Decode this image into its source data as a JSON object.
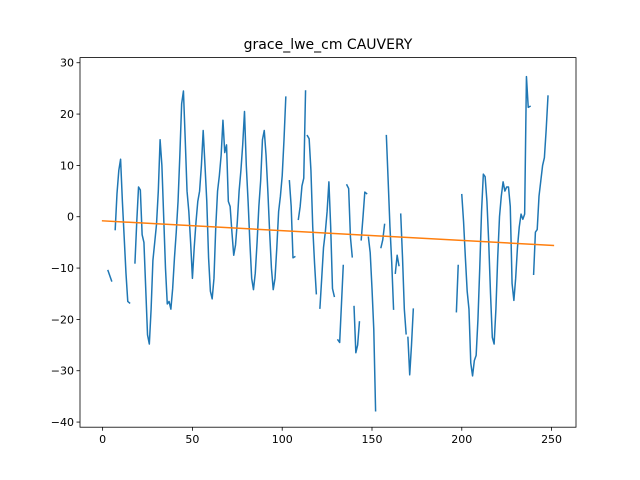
{
  "chart_data": {
    "type": "line",
    "title": "grace_lwe_cm CAUVERY",
    "xlabel": "",
    "ylabel": "",
    "xlim": [
      -12.6,
      263.6
    ],
    "ylim": [
      -41,
      31
    ],
    "x_ticks": [
      0,
      50,
      100,
      150,
      200,
      250
    ],
    "y_ticks": [
      -40,
      -30,
      -20,
      -10,
      0,
      10,
      20,
      30
    ],
    "grid": false,
    "legend": "none",
    "series": [
      {
        "color": "#1f77b4",
        "segments": [
          [
            [
              3,
              -10.5
            ],
            [
              5,
              -12.5
            ]
          ],
          [
            [
              7,
              -2.5
            ],
            [
              8,
              4.5
            ],
            [
              9,
              9
            ],
            [
              10,
              11.2
            ],
            [
              11,
              3
            ],
            [
              12,
              -4
            ],
            [
              13,
              -11
            ],
            [
              14,
              -16.5
            ],
            [
              15,
              -16.8
            ]
          ],
          [
            [
              18,
              -9
            ],
            [
              19,
              -1
            ],
            [
              20,
              5.8
            ],
            [
              21,
              5.2
            ],
            [
              22,
              -3.5
            ],
            [
              23,
              -5
            ],
            [
              24,
              -14
            ],
            [
              25,
              -23
            ],
            [
              26,
              -24.8
            ],
            [
              27,
              -18
            ],
            [
              28,
              -8.5
            ],
            [
              29,
              -5
            ],
            [
              30,
              -1.5
            ],
            [
              31,
              5
            ],
            [
              32,
              15
            ],
            [
              33,
              10
            ],
            [
              34,
              0
            ],
            [
              35,
              -10
            ],
            [
              36,
              -17
            ],
            [
              37,
              -16.5
            ],
            [
              38,
              -18
            ],
            [
              39,
              -14
            ],
            [
              40,
              -8
            ],
            [
              41,
              -3
            ],
            [
              42,
              3
            ],
            [
              43,
              12
            ],
            [
              44,
              22
            ],
            [
              45,
              24.5
            ],
            [
              46,
              15
            ],
            [
              47,
              5
            ],
            [
              48,
              1
            ],
            [
              49,
              -5
            ],
            [
              50,
              -12
            ],
            [
              51,
              -6
            ],
            [
              52,
              -1
            ],
            [
              53,
              3
            ],
            [
              54,
              5
            ],
            [
              55,
              10
            ],
            [
              56,
              16.8
            ],
            [
              57,
              10
            ],
            [
              58,
              3
            ],
            [
              59,
              -8
            ],
            [
              60,
              -14.5
            ],
            [
              61,
              -16
            ],
            [
              62,
              -12
            ],
            [
              63,
              -2
            ],
            [
              64,
              5
            ],
            [
              65,
              8
            ],
            [
              66,
              12
            ],
            [
              67,
              18.8
            ],
            [
              68,
              12.5
            ],
            [
              69,
              14
            ],
            [
              70,
              3
            ],
            [
              71,
              2
            ],
            [
              72,
              -3
            ],
            [
              73,
              -7.5
            ],
            [
              74,
              -5.5
            ],
            [
              75,
              -1
            ],
            [
              76,
              5
            ],
            [
              77,
              9
            ],
            [
              78,
              14
            ],
            [
              79,
              20.5
            ],
            [
              80,
              10
            ],
            [
              81,
              3
            ],
            [
              82,
              -5
            ],
            [
              83,
              -12
            ],
            [
              84,
              -14.2
            ],
            [
              85,
              -11
            ],
            [
              86,
              -5
            ],
            [
              87,
              2
            ],
            [
              88,
              7
            ],
            [
              89,
              15
            ],
            [
              90,
              16.8
            ],
            [
              91,
              12
            ],
            [
              92,
              5
            ],
            [
              93,
              -3
            ],
            [
              94,
              -10
            ],
            [
              95,
              -14.2
            ],
            [
              96,
              -12
            ],
            [
              97,
              -6
            ],
            [
              98,
              1
            ],
            [
              99,
              4
            ],
            [
              100,
              8
            ],
            [
              101,
              15
            ],
            [
              102,
              23.3
            ]
          ],
          [
            [
              104,
              7
            ],
            [
              105,
              2
            ],
            [
              106,
              -8
            ],
            [
              107,
              -7.8
            ]
          ],
          [
            [
              109,
              -0.5
            ],
            [
              110,
              2
            ],
            [
              111,
              6
            ],
            [
              112,
              7.5
            ],
            [
              113,
              24.5
            ]
          ],
          [
            [
              114,
              15.8
            ],
            [
              115,
              15.2
            ],
            [
              116,
              9
            ],
            [
              117,
              -2
            ],
            [
              118,
              -9
            ],
            [
              119,
              -15
            ]
          ],
          [
            [
              121,
              -17.8
            ],
            [
              122,
              -12
            ],
            [
              123,
              -6
            ],
            [
              124,
              -3
            ],
            [
              125,
              1
            ],
            [
              126,
              6.8
            ],
            [
              127,
              -2
            ],
            [
              128,
              -14
            ],
            [
              129,
              -15.5
            ]
          ],
          [
            [
              131,
              -24
            ],
            [
              132,
              -24.5
            ],
            [
              133,
              -17
            ],
            [
              134,
              -9.5
            ]
          ],
          [
            [
              136,
              6.2
            ],
            [
              137,
              5.5
            ],
            [
              138,
              -4
            ],
            [
              139,
              -7.8
            ]
          ],
          [
            [
              140,
              -17.5
            ],
            [
              141,
              -26.5
            ],
            [
              142,
              -25
            ],
            [
              143,
              -20.5
            ]
          ],
          [
            [
              144,
              -4.5
            ],
            [
              145,
              0
            ],
            [
              146,
              4.8
            ],
            [
              147,
              4.5
            ]
          ],
          [
            [
              148,
              -4
            ],
            [
              149,
              -7
            ],
            [
              150,
              -14
            ],
            [
              151,
              -22
            ],
            [
              152,
              -37.8
            ]
          ],
          [
            [
              155,
              -6
            ],
            [
              156,
              -4.5
            ],
            [
              157,
              -1.5
            ]
          ],
          [
            [
              158,
              15.8
            ],
            [
              159,
              7
            ],
            [
              160,
              -2
            ],
            [
              161,
              -9
            ],
            [
              162,
              -18
            ]
          ],
          [
            [
              163,
              -11
            ],
            [
              164,
              -7.5
            ],
            [
              165,
              -9.5
            ]
          ],
          [
            [
              166,
              0.5
            ],
            [
              167,
              -8
            ],
            [
              168,
              -18
            ],
            [
              169,
              -22.8
            ]
          ],
          [
            [
              170,
              -23.5
            ],
            [
              171,
              -30.8
            ],
            [
              172,
              -25
            ],
            [
              173,
              -18
            ]
          ],
          [
            [
              197,
              -18.5
            ],
            [
              198,
              -9.5
            ]
          ],
          [
            [
              200,
              4.3
            ],
            [
              201,
              -1
            ],
            [
              202,
              -8
            ],
            [
              203,
              -14.5
            ],
            [
              204,
              -18
            ],
            [
              205,
              -28.5
            ],
            [
              206,
              -31
            ],
            [
              207,
              -28
            ],
            [
              208,
              -27
            ],
            [
              209,
              -20
            ],
            [
              210,
              -10
            ],
            [
              211,
              1
            ],
            [
              212,
              8.3
            ],
            [
              213,
              7.8
            ],
            [
              214,
              3
            ],
            [
              215,
              -5
            ],
            [
              216,
              -15
            ],
            [
              217,
              -23.5
            ],
            [
              218,
              -24.8
            ],
            [
              219,
              -18
            ],
            [
              220,
              -8
            ],
            [
              221,
              0
            ],
            [
              222,
              4
            ],
            [
              223,
              6.8
            ],
            [
              224,
              5
            ],
            [
              225,
              5.8
            ],
            [
              226,
              5.8
            ],
            [
              227,
              2
            ],
            [
              228,
              -13
            ],
            [
              229,
              -16.3
            ],
            [
              230,
              -12
            ],
            [
              231,
              -6
            ],
            [
              232,
              -2
            ],
            [
              233,
              0.5
            ],
            [
              234,
              -0.5
            ],
            [
              235,
              0.5
            ],
            [
              236,
              27.3
            ],
            [
              237,
              21.3
            ],
            [
              238,
              21.5
            ]
          ],
          [
            [
              240,
              -11.2
            ],
            [
              241,
              -3
            ],
            [
              242,
              -2.5
            ],
            [
              243,
              4
            ],
            [
              244,
              7
            ],
            [
              245,
              10
            ],
            [
              246,
              11.5
            ],
            [
              247,
              17
            ],
            [
              248,
              23.5
            ]
          ]
        ]
      },
      {
        "color": "#ff7f0e",
        "x": [
          0,
          251
        ],
        "y": [
          -0.8,
          -5.6
        ]
      }
    ]
  }
}
